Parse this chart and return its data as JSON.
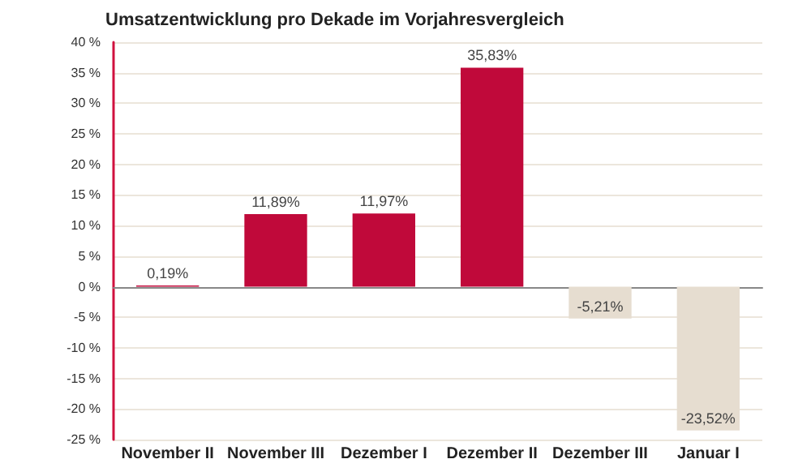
{
  "chart_data": {
    "type": "bar",
    "title": "Umsatzentwicklung pro Dekade im Vorjahresvergleich",
    "categories": [
      "November II",
      "November III",
      "Dezember I",
      "Dezember II",
      "Dezember III",
      "Januar I"
    ],
    "values": [
      0.19,
      11.89,
      11.97,
      35.83,
      -5.21,
      -23.52
    ],
    "colors": [
      "#c0093a",
      "#c0093a",
      "#c0093a",
      "#c0093a",
      "#e6ddd0",
      "#e6ddd0"
    ],
    "value_labels": [
      "0,19%",
      "11,89%",
      "11,97%",
      "35,83%",
      "-5,21%",
      "-23,52%"
    ],
    "ylim": [
      -25,
      40
    ],
    "yticks": [
      {
        "value": -25,
        "label": "-25 %"
      },
      {
        "value": -20,
        "label": "-20 %"
      },
      {
        "value": -15,
        "label": "-15 %"
      },
      {
        "value": -10,
        "label": "-10 %"
      },
      {
        "value": -5,
        "label": "-5 %"
      },
      {
        "value": 0,
        "label": "0 %"
      },
      {
        "value": 5,
        "label": "5 %"
      },
      {
        "value": 10,
        "label": "10 %"
      },
      {
        "value": 15,
        "label": "15 %"
      },
      {
        "value": 20,
        "label": "20 %"
      },
      {
        "value": 25,
        "label": "25 %"
      },
      {
        "value": 30,
        "label": "30 %"
      },
      {
        "value": 35,
        "label": "35 %"
      },
      {
        "value": 40,
        "label": "40 %"
      }
    ],
    "grid": "y"
  }
}
